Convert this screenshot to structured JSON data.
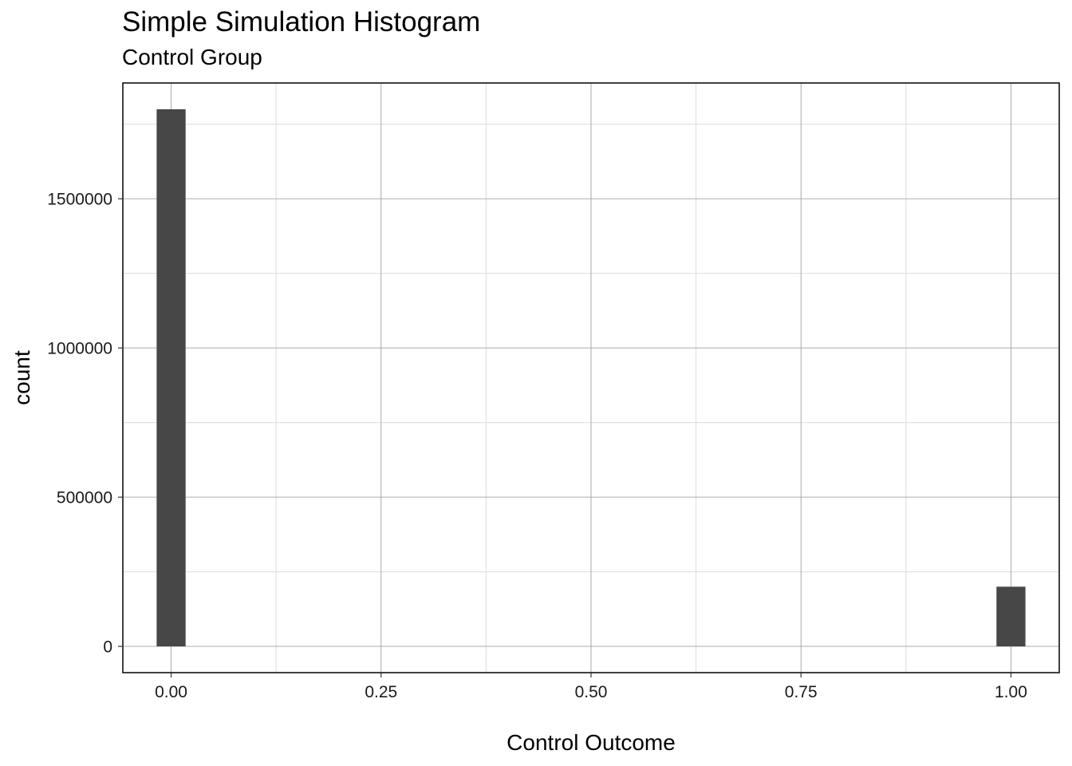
{
  "chart_data": {
    "type": "bar",
    "title": "Simple Simulation Histogram",
    "subtitle": "Control Group",
    "xlabel": "Control Outcome",
    "ylabel": "count",
    "xlim": [
      -0.0575,
      1.0575
    ],
    "ylim": [
      -88000,
      1888000
    ],
    "x_ticks": [
      0,
      0.25,
      0.5,
      0.75,
      1
    ],
    "x_tick_labels": [
      "0.00",
      "0.25",
      "0.50",
      "0.75",
      "1.00"
    ],
    "y_ticks": [
      0,
      500000,
      1000000,
      1500000
    ],
    "y_tick_labels": [
      "0",
      "500000",
      "1000000",
      "1500000"
    ],
    "bin_width": 0.0345,
    "bins": [
      {
        "x": 0,
        "count": 1800000
      },
      {
        "x": 1,
        "count": 200000
      }
    ],
    "grid": true,
    "bar_color": "#474747",
    "grid_major_color": "#a0a0a0",
    "grid_minor_color": "#dcdcdc",
    "panel_border_color": "#000000"
  }
}
